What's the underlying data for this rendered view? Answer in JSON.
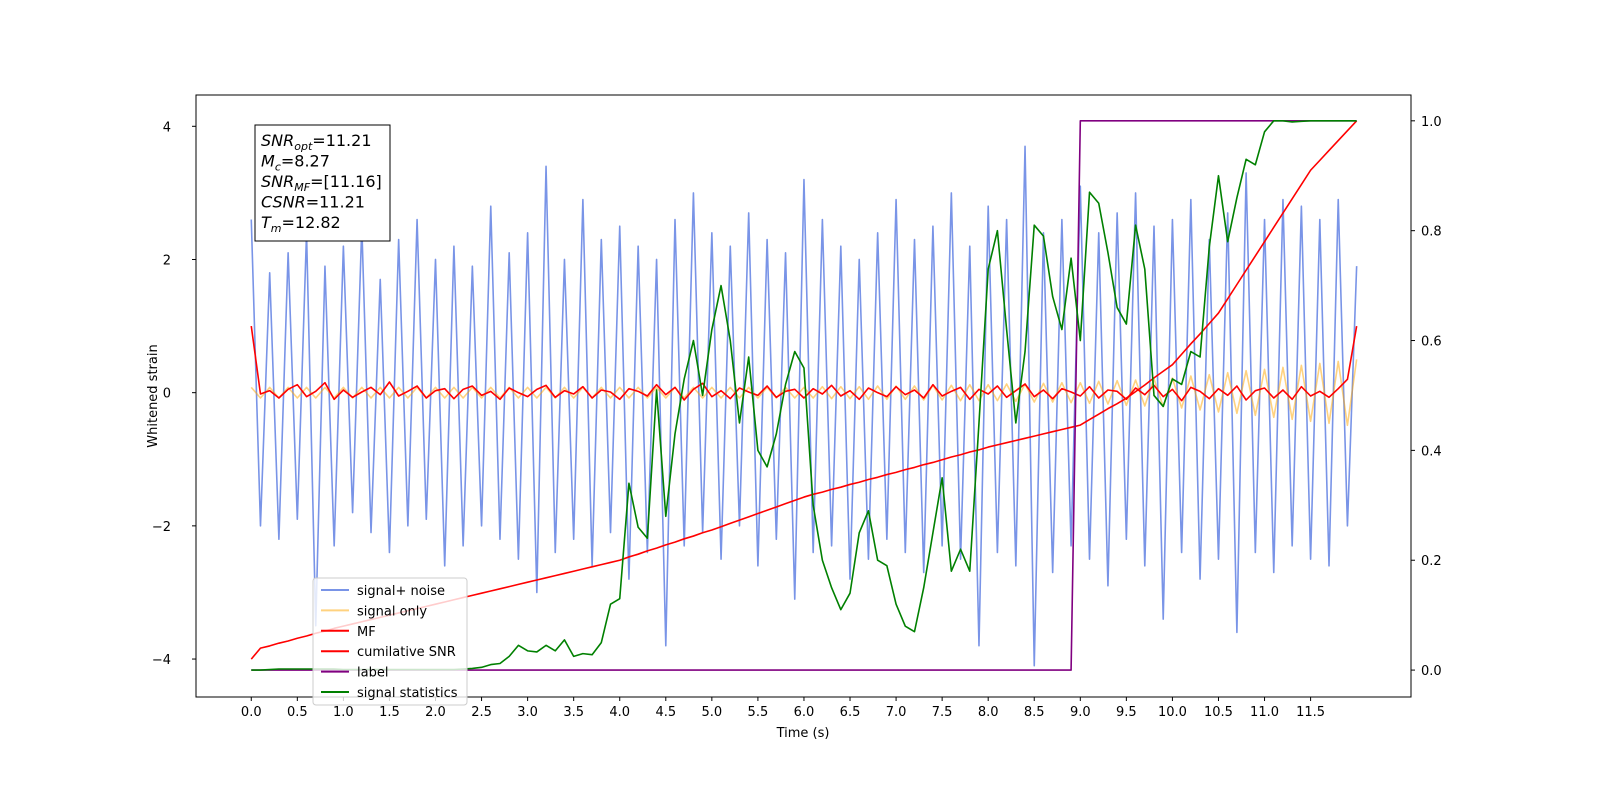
{
  "chart_data": {
    "type": "line",
    "xlabel": "Time (s)",
    "ylabel": "Whitened strain",
    "xlim": [
      -0.6,
      12.59
    ],
    "ylim": [
      -4.57,
      4.47
    ],
    "y2lim": [
      -0.049,
      1.047
    ],
    "xticks": [
      {
        "value": 0,
        "label": "0.0"
      },
      0.5,
      {
        "value": 1,
        "label": "1.0"
      },
      1.5,
      {
        "value": 2,
        "label": "2.0"
      },
      2.5,
      {
        "value": 3,
        "label": "3.0"
      },
      3.5,
      {
        "value": 4,
        "label": "4.0"
      },
      4.5,
      {
        "value": 5,
        "label": "5.0"
      },
      5.5,
      {
        "value": 6,
        "label": "6.0"
      },
      6.5,
      {
        "value": 7,
        "label": "7.0"
      },
      7.5,
      {
        "value": 8,
        "label": "8.0"
      },
      8.5,
      {
        "value": 9,
        "label": "9.0"
      },
      9.5,
      {
        "value": 10,
        "label": "10.0"
      },
      10.5,
      {
        "value": 11,
        "label": "11.0"
      },
      11.5
    ],
    "yticks": [
      {
        "value": -4,
        "label": "−4"
      },
      {
        "value": -2,
        "label": "−2"
      },
      0,
      2,
      4
    ],
    "y2ticks": [
      {
        "value": 0,
        "label": "0.0"
      },
      0.2,
      0.4,
      0.6,
      0.8,
      {
        "value": 1,
        "label": "1.0"
      }
    ],
    "legend_loc": "lower left",
    "annotations": [
      {
        "text": "SNR",
        "sub": "opt",
        "value": "=11.21"
      },
      {
        "text": "M",
        "sub": "c",
        "value": "=8.27"
      },
      {
        "text": "SNR",
        "sub": "MF",
        "value": "=[11.16]"
      },
      {
        "text": "CSNR",
        "value": "=11.21"
      },
      {
        "text": "T",
        "sub": "m",
        "value": "=12.82"
      }
    ],
    "x": [
      0,
      0.1,
      0.2,
      0.3,
      0.4,
      0.5,
      0.6,
      0.7,
      0.8,
      0.9,
      1,
      1.1,
      1.2,
      1.3,
      1.4,
      1.5,
      1.6,
      1.7,
      1.8,
      1.9,
      2,
      2.1,
      2.2,
      2.3,
      2.4,
      2.5,
      2.6,
      2.7,
      2.8,
      2.9,
      3,
      3.1,
      3.2,
      3.3,
      3.4,
      3.5,
      3.6,
      3.7,
      3.8,
      3.9,
      4,
      4.1,
      4.2,
      4.3,
      4.4,
      4.5,
      4.6,
      4.7,
      4.8,
      4.9,
      5,
      5.1,
      5.2,
      5.3,
      5.4,
      5.5,
      5.6,
      5.7,
      5.8,
      5.9,
      6,
      6.1,
      6.2,
      6.3,
      6.4,
      6.5,
      6.6,
      6.7,
      6.8,
      6.9,
      7,
      7.1,
      7.2,
      7.3,
      7.4,
      7.5,
      7.6,
      7.7,
      7.8,
      7.9,
      8,
      8.1,
      8.2,
      8.3,
      8.4,
      8.5,
      8.6,
      8.7,
      8.8,
      8.9,
      9,
      9.1,
      9.2,
      9.3,
      9.4,
      9.5,
      9.6,
      9.7,
      9.8,
      9.9,
      10,
      10.1,
      10.2,
      10.3,
      10.4,
      10.5,
      10.6,
      10.7,
      10.8,
      10.9,
      11,
      11.1,
      11.2,
      11.3,
      11.4,
      11.5,
      11.6,
      11.7,
      11.8,
      11.9,
      12
    ],
    "series": [
      {
        "name": "signal+ noise",
        "color": "#7994e7",
        "values": [
          2.6,
          -2.0,
          1.8,
          -2.2,
          2.1,
          -1.9,
          2.4,
          -3.5,
          1.9,
          -2.3,
          2.2,
          -1.8,
          2.5,
          -2.1,
          1.7,
          -2.4,
          2.3,
          -2.0,
          2.6,
          -1.9,
          2.0,
          -2.6,
          2.2,
          -2.3,
          1.9,
          -2.0,
          2.8,
          -2.2,
          2.1,
          -2.5,
          2.4,
          -3.0,
          3.4,
          -2.4,
          2.0,
          -2.2,
          2.9,
          -2.6,
          2.3,
          -2.1,
          2.5,
          -2.8,
          2.2,
          -2.4,
          2.0,
          -3.8,
          2.6,
          -2.3,
          3.0,
          -2.1,
          2.4,
          -2.5,
          2.2,
          -2.0,
          2.7,
          -2.6,
          2.3,
          -2.2,
          2.1,
          -3.1,
          3.2,
          -2.4,
          2.6,
          -2.3,
          2.2,
          -2.8,
          2.0,
          -2.5,
          2.4,
          -2.2,
          2.9,
          -2.4,
          2.3,
          -2.7,
          2.5,
          -2.3,
          3.0,
          -2.5,
          2.2,
          -3.8,
          2.8,
          -2.4,
          2.6,
          -2.6,
          3.7,
          -4.1,
          2.4,
          -2.7,
          2.6,
          -2.3,
          3.1,
          -2.5,
          2.4,
          -2.9,
          2.7,
          -2.2,
          3.0,
          -2.6,
          2.5,
          -3.4,
          2.6,
          -2.4,
          2.9,
          -2.8,
          2.3,
          -2.5,
          2.7,
          -3.6,
          3.3,
          -2.4,
          2.6,
          -2.7,
          2.9,
          -2.3,
          2.8,
          -2.5,
          2.6,
          -2.6,
          2.9,
          -2.0,
          1.9
        ]
      },
      {
        "name": "signal only",
        "color": "#ffa500",
        "alpha": 0.5,
        "values": [
          0.08,
          -0.08,
          0.08,
          -0.08,
          0.08,
          -0.08,
          0.08,
          -0.08,
          0.08,
          -0.08,
          0.08,
          -0.08,
          0.08,
          -0.08,
          0.08,
          -0.08,
          0.08,
          -0.08,
          0.08,
          -0.08,
          0.08,
          -0.08,
          0.08,
          -0.08,
          0.08,
          -0.08,
          0.08,
          -0.08,
          0.08,
          -0.08,
          0.08,
          -0.08,
          0.08,
          -0.08,
          0.08,
          -0.08,
          0.08,
          -0.08,
          0.08,
          -0.08,
          0.08,
          -0.08,
          0.08,
          -0.08,
          0.08,
          -0.08,
          0.08,
          -0.08,
          0.08,
          -0.08,
          0.08,
          -0.08,
          0.08,
          -0.08,
          0.08,
          -0.08,
          0.08,
          -0.08,
          0.08,
          -0.08,
          0.08,
          -0.08,
          0.09,
          -0.09,
          0.09,
          -0.09,
          0.09,
          -0.1,
          0.1,
          -0.1,
          0.1,
          -0.1,
          0.1,
          -0.11,
          0.11,
          -0.11,
          0.11,
          -0.12,
          0.12,
          -0.12,
          0.12,
          -0.12,
          0.13,
          -0.13,
          0.13,
          -0.14,
          0.14,
          -0.14,
          0.15,
          -0.15,
          0.15,
          -0.16,
          0.17,
          -0.17,
          0.18,
          -0.19,
          0.19,
          -0.2,
          0.21,
          -0.21,
          0.22,
          -0.23,
          0.25,
          -0.26,
          0.27,
          -0.29,
          0.3,
          -0.31,
          0.33,
          -0.34,
          0.35,
          -0.37,
          0.38,
          -0.4,
          0.41,
          -0.43,
          0.44,
          -0.46,
          0.47,
          -0.49,
          0.5
        ]
      },
      {
        "name": "MF",
        "color": "#ff0000",
        "values": [
          1.0,
          -0.02,
          0.03,
          -0.08,
          0.05,
          0.12,
          -0.06,
          0.02,
          0.15,
          -0.1,
          0.04,
          -0.07,
          0.01,
          0.08,
          -0.03,
          0.16,
          -0.05,
          0.02,
          0.1,
          -0.08,
          0.03,
          0.06,
          -0.09,
          0.05,
          0.1,
          -0.04,
          0.02,
          -0.1,
          0.07,
          0.0,
          -0.06,
          0.05,
          0.11,
          -0.07,
          0.03,
          -0.02,
          0.09,
          -0.08,
          0.04,
          0.01,
          -0.1,
          0.06,
          0.02,
          -0.05,
          0.12,
          -0.03,
          0.08,
          -0.11,
          0.05,
          0.14,
          -0.06,
          0.03,
          -0.09,
          0.07,
          0.01,
          -0.04,
          0.1,
          -0.07,
          0.02,
          0.05,
          -0.08,
          0.06,
          -0.02,
          0.11,
          -0.05,
          0.03,
          -0.1,
          0.07,
          0.0,
          -0.06,
          0.09,
          -0.03,
          0.04,
          -0.08,
          0.12,
          -0.05,
          0.02,
          0.08,
          -0.1,
          0.05,
          -0.02,
          0.1,
          -0.07,
          0.03,
          0.13,
          -0.06,
          0.04,
          -0.09,
          0.06,
          0.01,
          -0.05,
          0.09,
          -0.08,
          0.04,
          0.02,
          -0.1,
          0.07,
          -0.03,
          0.11,
          -0.06,
          0.05,
          -0.12,
          0.08,
          0.02,
          -0.09,
          0.06,
          -0.04,
          0.1,
          -0.11,
          0.03,
          0.07,
          -0.08,
          0.04,
          -0.1,
          0.09,
          -0.05,
          0.02,
          -0.07,
          0.06,
          0.2,
          1.0
        ]
      },
      {
        "name": "cumilative SNR",
        "color": "#ff0000",
        "axis": "y2",
        "values": [
          0.02,
          0.04,
          0.044,
          0.049,
          0.053,
          0.058,
          0.062,
          0.067,
          0.071,
          0.076,
          0.08,
          0.084,
          0.088,
          0.092,
          0.096,
          0.1,
          0.104,
          0.108,
          0.112,
          0.116,
          0.12,
          0.124,
          0.128,
          0.132,
          0.136,
          0.14,
          0.144,
          0.148,
          0.152,
          0.156,
          0.16,
          0.164,
          0.168,
          0.172,
          0.176,
          0.18,
          0.184,
          0.188,
          0.192,
          0.196,
          0.2,
          0.206,
          0.211,
          0.217,
          0.222,
          0.228,
          0.233,
          0.239,
          0.244,
          0.25,
          0.255,
          0.261,
          0.267,
          0.273,
          0.279,
          0.285,
          0.291,
          0.297,
          0.303,
          0.309,
          0.315,
          0.32,
          0.324,
          0.329,
          0.333,
          0.338,
          0.342,
          0.347,
          0.351,
          0.356,
          0.36,
          0.365,
          0.369,
          0.374,
          0.378,
          0.383,
          0.388,
          0.392,
          0.397,
          0.401,
          0.406,
          0.41,
          0.414,
          0.418,
          0.422,
          0.426,
          0.43,
          0.434,
          0.438,
          0.442,
          0.446,
          0.456,
          0.466,
          0.476,
          0.485,
          0.495,
          0.507,
          0.519,
          0.532,
          0.544,
          0.556,
          0.575,
          0.594,
          0.612,
          0.631,
          0.65,
          0.676,
          0.702,
          0.728,
          0.754,
          0.78,
          0.806,
          0.832,
          0.858,
          0.884,
          0.91,
          0.928,
          0.946,
          0.964,
          0.982,
          1.0
        ]
      },
      {
        "name": "label",
        "color": "#800080",
        "axis": "y2",
        "values": [
          0,
          0,
          0,
          0,
          0,
          0,
          0,
          0,
          0,
          0,
          0,
          0,
          0,
          0,
          0,
          0,
          0,
          0,
          0,
          0,
          0,
          0,
          0,
          0,
          0,
          0,
          0,
          0,
          0,
          0,
          0,
          0,
          0,
          0,
          0,
          0,
          0,
          0,
          0,
          0,
          0,
          0,
          0,
          0,
          0,
          0,
          0,
          0,
          0,
          0,
          0,
          0,
          0,
          0,
          0,
          0,
          0,
          0,
          0,
          0,
          0,
          0,
          0,
          0,
          0,
          0,
          0,
          0,
          0,
          0,
          0,
          0,
          0,
          0,
          0,
          0,
          0,
          0,
          0,
          0,
          0,
          0,
          0,
          0,
          0,
          0,
          0,
          0,
          0,
          0,
          1,
          1,
          1,
          1,
          1,
          1,
          1,
          1,
          1,
          1,
          1,
          1,
          1,
          1,
          1,
          1,
          1,
          1,
          1,
          1,
          1,
          1,
          1,
          1,
          1,
          1,
          1,
          1,
          1,
          1,
          1
        ]
      },
      {
        "name": "signal statistics",
        "color": "#008000",
        "axis": "y2",
        "values": [
          0.0,
          0.0,
          0.001,
          0.002,
          0.002,
          0.002,
          0.002,
          0.002,
          0.002,
          0.002,
          0.001,
          0.001,
          0.001,
          0.001,
          0.001,
          0.001,
          0.001,
          0.001,
          0.001,
          0.001,
          0.001,
          0.001,
          0.001,
          0.002,
          0.003,
          0.005,
          0.01,
          0.012,
          0.025,
          0.045,
          0.035,
          0.033,
          0.045,
          0.035,
          0.055,
          0.025,
          0.03,
          0.028,
          0.05,
          0.12,
          0.13,
          0.34,
          0.26,
          0.24,
          0.51,
          0.28,
          0.43,
          0.53,
          0.6,
          0.5,
          0.62,
          0.7,
          0.6,
          0.45,
          0.57,
          0.4,
          0.37,
          0.43,
          0.52,
          0.58,
          0.55,
          0.3,
          0.2,
          0.15,
          0.11,
          0.14,
          0.25,
          0.29,
          0.2,
          0.19,
          0.12,
          0.08,
          0.07,
          0.15,
          0.25,
          0.35,
          0.18,
          0.22,
          0.18,
          0.45,
          0.73,
          0.8,
          0.62,
          0.45,
          0.58,
          0.81,
          0.79,
          0.68,
          0.62,
          0.75,
          0.6,
          0.87,
          0.85,
          0.76,
          0.66,
          0.63,
          0.81,
          0.73,
          0.5,
          0.48,
          0.53,
          0.52,
          0.58,
          0.57,
          0.77,
          0.9,
          0.78,
          0.86,
          0.93,
          0.92,
          0.98,
          1.0,
          1.0,
          0.998,
          0.999,
          1.0,
          1.0,
          1.0,
          1.0,
          1.0,
          1.0
        ]
      }
    ]
  }
}
